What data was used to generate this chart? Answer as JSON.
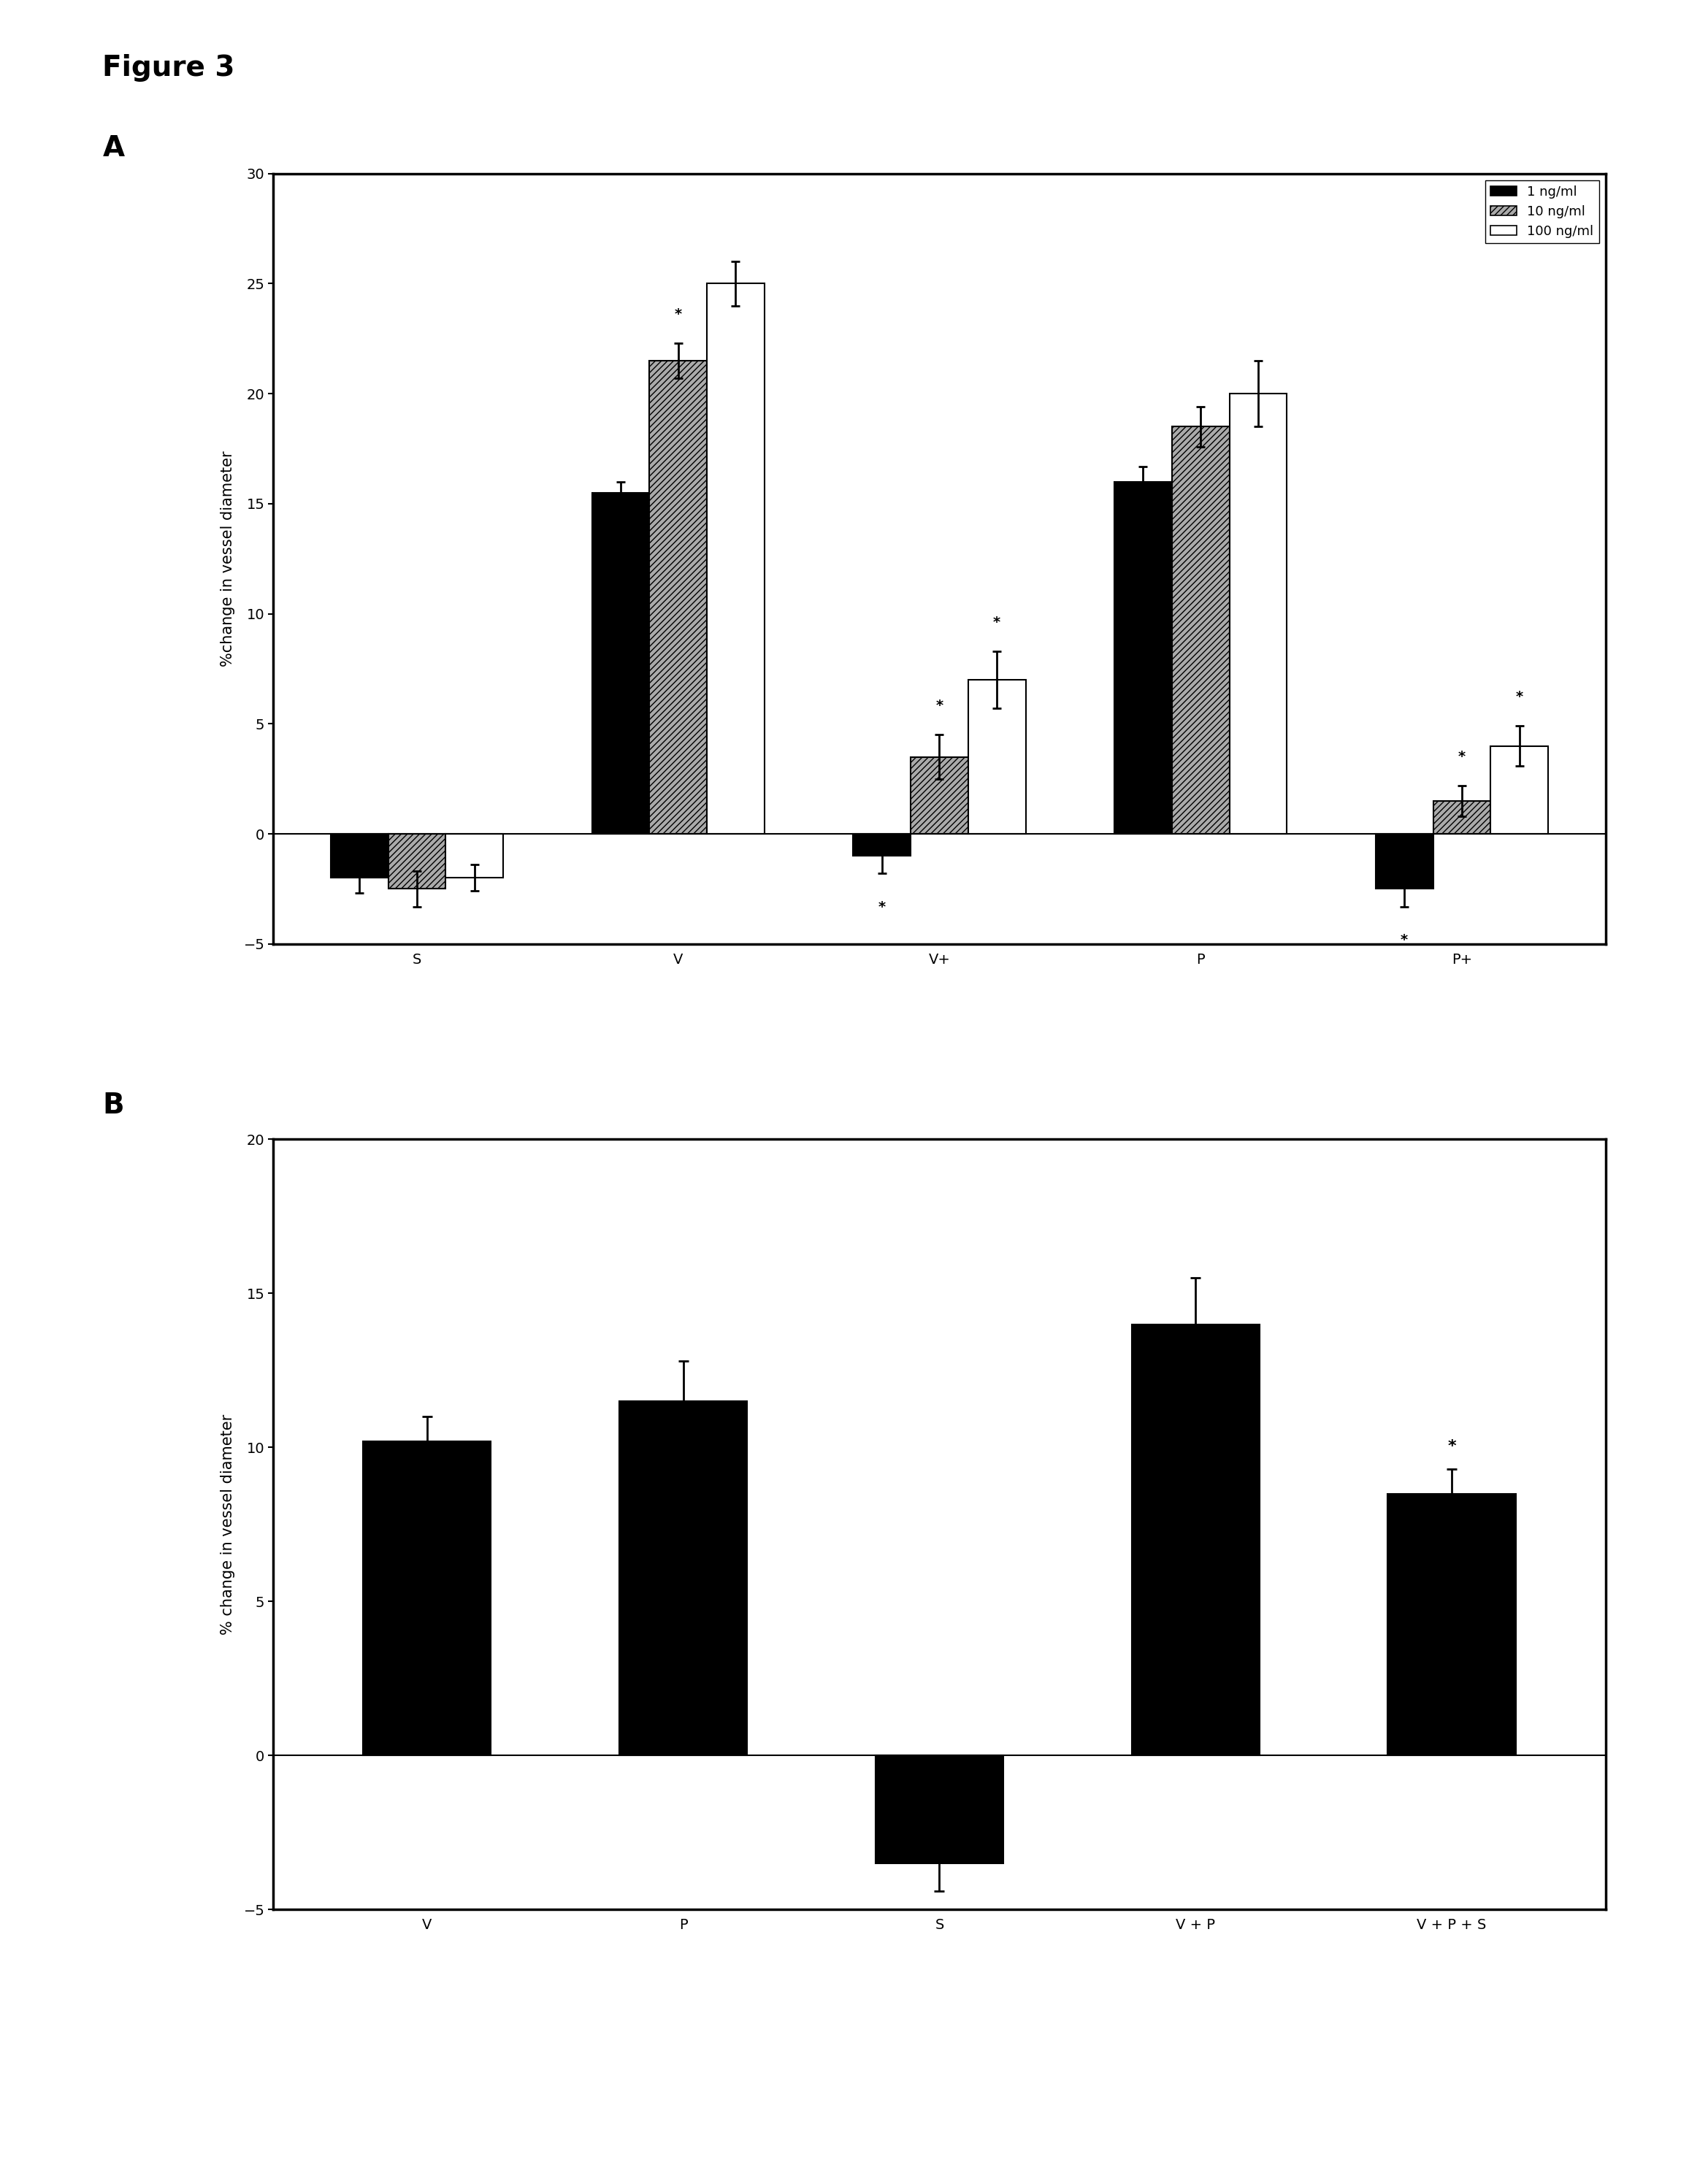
{
  "title": "Figure 3",
  "title_fontsize": 28,
  "panel_A": {
    "label": "A",
    "ylabel": "%change in vessel diameter",
    "ylabel_fontsize": 15,
    "ylim": [
      -5,
      30
    ],
    "yticks": [
      -5,
      0,
      5,
      10,
      15,
      20,
      25,
      30
    ],
    "categories": [
      "S",
      "V",
      "V+",
      "P",
      "P+"
    ],
    "series_labels": [
      "1 ng/ml",
      "10 ng/ml",
      "100 ng/ml"
    ],
    "values": [
      [
        -2.0,
        15.5,
        -1.0,
        16.0,
        -2.5
      ],
      [
        -2.5,
        21.5,
        3.5,
        18.5,
        1.5
      ],
      [
        -2.0,
        25.0,
        7.0,
        20.0,
        4.0
      ]
    ],
    "errors": [
      [
        0.7,
        0.5,
        0.8,
        0.7,
        0.8
      ],
      [
        0.8,
        0.8,
        1.0,
        0.9,
        0.7
      ],
      [
        0.6,
        1.0,
        1.3,
        1.5,
        0.9
      ]
    ],
    "colors": [
      "#000000",
      "#aaaaaa",
      "#ffffff"
    ],
    "hatch": [
      null,
      "////",
      null
    ],
    "bar_width": 0.22,
    "tick_fontsize": 14,
    "cat_fontsize": 16,
    "stars": [
      [
        2,
        0,
        false
      ],
      [
        1,
        1,
        true
      ],
      [
        2,
        1,
        true
      ],
      [
        2,
        2,
        true
      ],
      [
        4,
        0,
        false
      ],
      [
        4,
        1,
        true
      ],
      [
        4,
        2,
        true
      ]
    ]
  },
  "panel_B": {
    "label": "B",
    "ylabel": "% change in vessel diameter",
    "ylabel_fontsize": 15,
    "ylim": [
      -5,
      20
    ],
    "yticks": [
      -5,
      0,
      5,
      10,
      15,
      20
    ],
    "categories": [
      "V",
      "P",
      "S",
      "V + P",
      "V + P + S"
    ],
    "values": [
      10.2,
      11.5,
      -3.5,
      14.0,
      8.5
    ],
    "errors": [
      0.8,
      1.3,
      0.9,
      1.5,
      0.8
    ],
    "star": [
      false,
      false,
      false,
      false,
      true
    ],
    "color": "#000000",
    "bar_width": 0.5,
    "tick_fontsize": 14,
    "cat_fontsize": 16
  }
}
